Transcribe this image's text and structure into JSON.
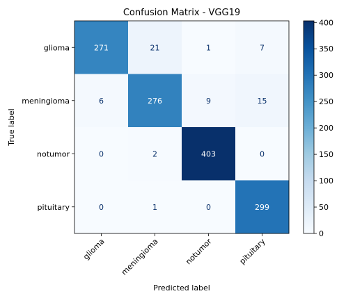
{
  "chart_data": {
    "type": "heatmap",
    "title": "Confusion Matrix - VGG19",
    "xlabel": "Predicted label",
    "ylabel": "True label",
    "x_categories": [
      "glioma",
      "meningioma",
      "notumor",
      "pituitary"
    ],
    "y_categories": [
      "glioma",
      "meningioma",
      "notumor",
      "pituitary"
    ],
    "values": [
      [
        271,
        21,
        1,
        7
      ],
      [
        6,
        276,
        9,
        15
      ],
      [
        0,
        2,
        403,
        0
      ],
      [
        0,
        1,
        0,
        299
      ]
    ],
    "colormap": "Blues",
    "colorbar": {
      "min": 0,
      "max": 403,
      "ticks": [
        "0",
        "50",
        "100",
        "150",
        "200",
        "250",
        "300",
        "350",
        "400"
      ]
    },
    "text_colors": {
      "dark": "#08306b",
      "light": "#ffffff"
    }
  }
}
